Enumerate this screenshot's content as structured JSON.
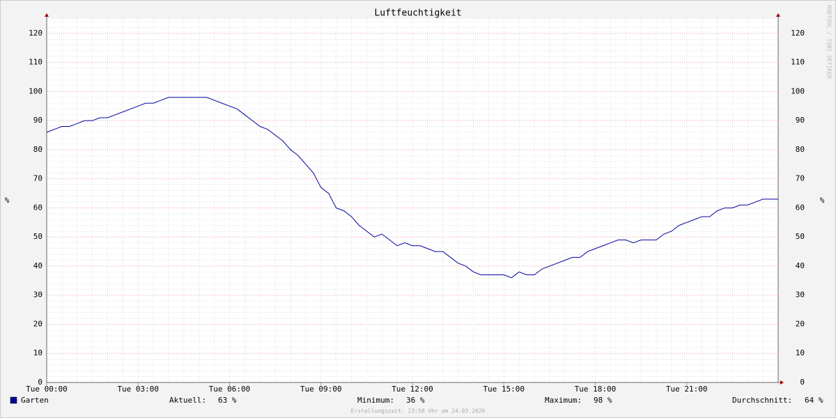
{
  "chart_data": {
    "type": "line",
    "title": "Luftfeuchtigkeit",
    "y_label": "%",
    "x": [
      0,
      0.25,
      0.5,
      0.75,
      1,
      1.25,
      1.5,
      1.75,
      2,
      2.25,
      2.5,
      2.75,
      3,
      3.25,
      3.5,
      3.75,
      4,
      4.25,
      4.5,
      4.75,
      5,
      5.25,
      5.5,
      5.75,
      6,
      6.25,
      6.5,
      6.75,
      7,
      7.25,
      7.5,
      7.75,
      8,
      8.25,
      8.5,
      8.75,
      9,
      9.25,
      9.5,
      9.75,
      10,
      10.25,
      10.5,
      10.75,
      11,
      11.25,
      11.5,
      11.75,
      12,
      12.25,
      12.5,
      12.75,
      13,
      13.25,
      13.5,
      13.75,
      14,
      14.25,
      14.5,
      14.75,
      15,
      15.25,
      15.5,
      15.75,
      16,
      16.25,
      16.5,
      16.75,
      17,
      17.25,
      17.5,
      17.75,
      18,
      18.25,
      18.5,
      18.75,
      19,
      19.25,
      19.5,
      19.75,
      20,
      20.25,
      20.5,
      20.75,
      21,
      21.25,
      21.5,
      21.75,
      22,
      22.25,
      22.5,
      22.75,
      23,
      23.25,
      23.5,
      23.75,
      24
    ],
    "series": [
      {
        "name": "Garten",
        "color": "#000099",
        "values": [
          86,
          87,
          88,
          88,
          89,
          90,
          90,
          91,
          91,
          92,
          93,
          94,
          95,
          96,
          96,
          97,
          98,
          98,
          98,
          98,
          98,
          98,
          97,
          96,
          95,
          94,
          92,
          90,
          88,
          87,
          85,
          83,
          80,
          78,
          75,
          72,
          67,
          65,
          60,
          59,
          57,
          54,
          52,
          50,
          51,
          49,
          47,
          48,
          47,
          47,
          46,
          45,
          45,
          43,
          41,
          40,
          38,
          37,
          37,
          37,
          37,
          36,
          38,
          37,
          37,
          39,
          40,
          41,
          42,
          43,
          43,
          45,
          46,
          47,
          48,
          49,
          49,
          48,
          49,
          49,
          49,
          51,
          52,
          54,
          55,
          56,
          57,
          57,
          59,
          60,
          60,
          61,
          61,
          62,
          63,
          63,
          63
        ]
      }
    ],
    "xlim": [
      0,
      24
    ],
    "xticks": [
      {
        "value": 0,
        "label": "Tue 00:00"
      },
      {
        "value": 3,
        "label": "Tue 03:00"
      },
      {
        "value": 6,
        "label": "Tue 06:00"
      },
      {
        "value": 9,
        "label": "Tue 09:00"
      },
      {
        "value": 12,
        "label": "Tue 12:00"
      },
      {
        "value": 15,
        "label": "Tue 15:00"
      },
      {
        "value": 18,
        "label": "Tue 18:00"
      },
      {
        "value": 21,
        "label": "Tue 21:00"
      }
    ],
    "ylim": [
      0,
      125
    ],
    "yticks": [
      0,
      10,
      20,
      30,
      40,
      50,
      60,
      70,
      80,
      90,
      100,
      110,
      120
    ],
    "grid": true,
    "legend_stats": [
      {
        "label": "Aktuell:",
        "value": "63 %"
      },
      {
        "label": "Minimum:",
        "value": "36 %"
      },
      {
        "label": "Maximum:",
        "value": "98 %"
      },
      {
        "label": "Durchschnitt:",
        "value": "64 %"
      }
    ],
    "footer": "Erstellungszeit: 23:58 Uhr am 24.03.2026",
    "watermark": "RRDTOOL / TOBI OETIKER"
  }
}
